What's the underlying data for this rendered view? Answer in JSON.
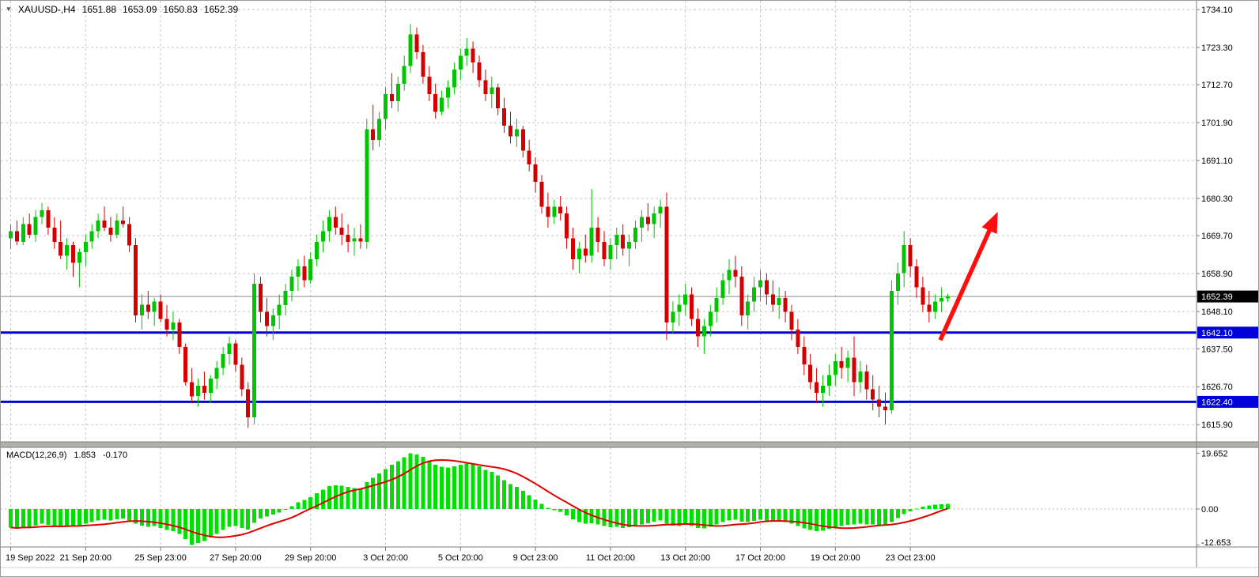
{
  "window": {
    "symbol_label": "XAUUSD-,H4",
    "open": "1651.88",
    "high": "1653.09",
    "low": "1650.83",
    "close": "1652.39"
  },
  "macd_panel": {
    "name": "MACD(12,26,9)",
    "main_value": "1.853",
    "signal_value": "-0.170"
  },
  "colors": {
    "bull": "#00C400",
    "bear": "#D40000",
    "macd_hist": "#00E000",
    "macd_signal": "#E00000",
    "level_line": "#0000D8",
    "grid": "#C8C8C8",
    "arrow": "#FF0E0E",
    "axis_text": "#000000",
    "badge_current_bg": "#000000",
    "badge_text": "#FFFFFF"
  },
  "price_axis": {
    "tick_labels": [
      "1734.10",
      "1723.30",
      "1712.70",
      "1701.90",
      "1691.10",
      "1680.30",
      "1669.70",
      "1658.90",
      "1648.10",
      "1637.50",
      "1626.70",
      "1615.90"
    ]
  },
  "macd_axis": {
    "tick_labels": [
      "19.652",
      "0.00",
      "-12.653"
    ],
    "tick_values": [
      19.652,
      0,
      -12.653
    ]
  },
  "time_axis": {
    "ticks": [
      {
        "label": "19 Sep 2022",
        "bar": 0
      },
      {
        "label": "21 Sep 20:00",
        "bar": 12
      },
      {
        "label": "25 Sep 23:00",
        "bar": 24
      },
      {
        "label": "27 Sep 20:00",
        "bar": 36
      },
      {
        "label": "29 Sep 20:00",
        "bar": 48
      },
      {
        "label": "3 Oct 20:00",
        "bar": 60
      },
      {
        "label": "5 Oct 20:00",
        "bar": 72
      },
      {
        "label": "9 Oct 23:00",
        "bar": 84
      },
      {
        "label": "11 Oct 20:00",
        "bar": 96
      },
      {
        "label": "13 Oct 20:00",
        "bar": 108
      },
      {
        "label": "17 Oct 20:00",
        "bar": 120
      },
      {
        "label": "19 Oct 20:00",
        "bar": 132
      },
      {
        "label": "23 Oct 23:00",
        "bar": 144
      }
    ]
  },
  "levels": [
    {
      "price": 1642.1,
      "label": "1642.10"
    },
    {
      "price": 1622.4,
      "label": "1622.40"
    }
  ],
  "current_price": {
    "value": 1652.39,
    "label": "1652.39"
  },
  "chart_data": {
    "type": "candlestick",
    "title": "XAUUSD-,H4",
    "symbol": "XAUUSD",
    "timeframe": "H4",
    "y_axis": {
      "range": [
        1611.0,
        1736.6
      ],
      "tick_values": [
        1734.1,
        1723.3,
        1712.7,
        1701.9,
        1691.1,
        1680.3,
        1669.7,
        1658.9,
        1648.1,
        1637.5,
        1626.7,
        1615.9
      ]
    },
    "x_axis": {
      "tick_bars": [
        0,
        12,
        24,
        36,
        48,
        60,
        72,
        84,
        96,
        108,
        120,
        132,
        144
      ],
      "tick_labels": [
        "19 Sep 2022",
        "21 Sep 20:00",
        "25 Sep 23:00",
        "27 Sep 20:00",
        "29 Sep 20:00",
        "3 Oct 20:00",
        "5 Oct 20:00",
        "9 Oct 23:00",
        "11 Oct 20:00",
        "13 Oct 20:00",
        "17 Oct 20:00",
        "19 Oct 20:00",
        "23 Oct 23:00"
      ]
    },
    "support_lines": [
      1642.1,
      1622.4
    ],
    "last_price": 1652.39,
    "arrow_annotation": {
      "from_bar": 148.8,
      "from_price": 1640.0,
      "to_bar": 158,
      "to_price": 1676.5
    },
    "candles_ohlc": [
      [
        1669,
        1673,
        1666,
        1671
      ],
      [
        1671,
        1674,
        1667,
        1668
      ],
      [
        1668,
        1675,
        1667,
        1673
      ],
      [
        1673,
        1676,
        1669,
        1670
      ],
      [
        1670,
        1677,
        1668,
        1675
      ],
      [
        1675,
        1679,
        1673,
        1677
      ],
      [
        1677,
        1678,
        1670,
        1672
      ],
      [
        1672,
        1675,
        1666,
        1668
      ],
      [
        1668,
        1674,
        1663,
        1664
      ],
      [
        1664,
        1669,
        1660,
        1667
      ],
      [
        1667,
        1668,
        1658,
        1662
      ],
      [
        1662,
        1666,
        1655,
        1665
      ],
      [
        1665,
        1670,
        1661,
        1668
      ],
      [
        1668,
        1673,
        1666,
        1671
      ],
      [
        1671,
        1676,
        1669,
        1674
      ],
      [
        1674,
        1678,
        1671,
        1672
      ],
      [
        1672,
        1675,
        1668,
        1670
      ],
      [
        1670,
        1676,
        1669,
        1674
      ],
      [
        1674,
        1678,
        1672,
        1673
      ],
      [
        1673,
        1675,
        1665,
        1667
      ],
      [
        1667,
        1669,
        1645,
        1647
      ],
      [
        1647,
        1653,
        1643,
        1650
      ],
      [
        1650,
        1654,
        1646,
        1648
      ],
      [
        1648,
        1652,
        1644,
        1651
      ],
      [
        1651,
        1653,
        1645,
        1646
      ],
      [
        1646,
        1650,
        1641,
        1643
      ],
      [
        1643,
        1648,
        1640,
        1645
      ],
      [
        1645,
        1646,
        1636,
        1638
      ],
      [
        1638,
        1639,
        1627,
        1628
      ],
      [
        1628,
        1632,
        1622,
        1624
      ],
      [
        1624,
        1629,
        1621,
        1627
      ],
      [
        1627,
        1631,
        1623,
        1625
      ],
      [
        1625,
        1630,
        1622,
        1629
      ],
      [
        1629,
        1634,
        1626,
        1632
      ],
      [
        1632,
        1638,
        1630,
        1636
      ],
      [
        1636,
        1641,
        1633,
        1639
      ],
      [
        1639,
        1640,
        1631,
        1633
      ],
      [
        1633,
        1635,
        1624,
        1626
      ],
      [
        1626,
        1628,
        1615,
        1618
      ],
      [
        1618,
        1659,
        1616,
        1656
      ],
      [
        1656,
        1658,
        1645,
        1648
      ],
      [
        1648,
        1652,
        1641,
        1644
      ],
      [
        1644,
        1649,
        1640,
        1647
      ],
      [
        1647,
        1653,
        1643,
        1650
      ],
      [
        1650,
        1656,
        1647,
        1654
      ],
      [
        1654,
        1660,
        1651,
        1658
      ],
      [
        1658,
        1663,
        1654,
        1661
      ],
      [
        1661,
        1664,
        1655,
        1657
      ],
      [
        1657,
        1665,
        1656,
        1663
      ],
      [
        1663,
        1670,
        1661,
        1668
      ],
      [
        1668,
        1674,
        1665,
        1671
      ],
      [
        1671,
        1677,
        1668,
        1675
      ],
      [
        1675,
        1678,
        1670,
        1672
      ],
      [
        1672,
        1676,
        1667,
        1670
      ],
      [
        1670,
        1673,
        1665,
        1668
      ],
      [
        1668,
        1672,
        1664,
        1669
      ],
      [
        1669,
        1673,
        1666,
        1668
      ],
      [
        1668,
        1703,
        1666,
        1700
      ],
      [
        1700,
        1707,
        1694,
        1697
      ],
      [
        1697,
        1705,
        1695,
        1703
      ],
      [
        1703,
        1712,
        1700,
        1710
      ],
      [
        1710,
        1716,
        1706,
        1708
      ],
      [
        1708,
        1715,
        1705,
        1713
      ],
      [
        1713,
        1721,
        1711,
        1718
      ],
      [
        1718,
        1730,
        1716,
        1727
      ],
      [
        1727,
        1729,
        1720,
        1722
      ],
      [
        1722,
        1724,
        1713,
        1715
      ],
      [
        1715,
        1718,
        1708,
        1710
      ],
      [
        1710,
        1713,
        1703,
        1705
      ],
      [
        1705,
        1711,
        1704,
        1709
      ],
      [
        1709,
        1714,
        1706,
        1712
      ],
      [
        1712,
        1719,
        1710,
        1717
      ],
      [
        1717,
        1723,
        1714,
        1721
      ],
      [
        1721,
        1726,
        1718,
        1723
      ],
      [
        1723,
        1725,
        1716,
        1719
      ],
      [
        1719,
        1721,
        1712,
        1714
      ],
      [
        1714,
        1717,
        1708,
        1710
      ],
      [
        1710,
        1715,
        1706,
        1712
      ],
      [
        1712,
        1713,
        1704,
        1706
      ],
      [
        1706,
        1709,
        1699,
        1701
      ],
      [
        1701,
        1705,
        1696,
        1698
      ],
      [
        1698,
        1703,
        1695,
        1700
      ],
      [
        1700,
        1701,
        1692,
        1694
      ],
      [
        1694,
        1697,
        1688,
        1690
      ],
      [
        1690,
        1692,
        1682,
        1685
      ],
      [
        1685,
        1687,
        1676,
        1678
      ],
      [
        1678,
        1682,
        1672,
        1675
      ],
      [
        1675,
        1680,
        1673,
        1678
      ],
      [
        1678,
        1681,
        1674,
        1676
      ],
      [
        1676,
        1678,
        1666,
        1669
      ],
      [
        1669,
        1672,
        1660,
        1663
      ],
      [
        1663,
        1668,
        1659,
        1666
      ],
      [
        1666,
        1670,
        1662,
        1664
      ],
      [
        1664,
        1683,
        1662,
        1672
      ],
      [
        1672,
        1675,
        1665,
        1668
      ],
      [
        1668,
        1671,
        1661,
        1663
      ],
      [
        1663,
        1669,
        1660,
        1667
      ],
      [
        1667,
        1672,
        1663,
        1670
      ],
      [
        1670,
        1673,
        1664,
        1666
      ],
      [
        1666,
        1670,
        1661,
        1668
      ],
      [
        1668,
        1674,
        1666,
        1672
      ],
      [
        1672,
        1677,
        1668,
        1675
      ],
      [
        1675,
        1679,
        1671,
        1673
      ],
      [
        1673,
        1678,
        1669,
        1676
      ],
      [
        1676,
        1680,
        1672,
        1678
      ],
      [
        1678,
        1682,
        1640,
        1645
      ],
      [
        1645,
        1651,
        1642,
        1648
      ],
      [
        1648,
        1653,
        1644,
        1650
      ],
      [
        1650,
        1656,
        1647,
        1653
      ],
      [
        1653,
        1655,
        1644,
        1646
      ],
      [
        1646,
        1649,
        1638,
        1641
      ],
      [
        1641,
        1646,
        1636,
        1644
      ],
      [
        1644,
        1650,
        1641,
        1648
      ],
      [
        1648,
        1655,
        1645,
        1652
      ],
      [
        1652,
        1659,
        1650,
        1657
      ],
      [
        1657,
        1663,
        1653,
        1660
      ],
      [
        1660,
        1664,
        1655,
        1658
      ],
      [
        1658,
        1661,
        1644,
        1647
      ],
      [
        1647,
        1653,
        1643,
        1651
      ],
      [
        1651,
        1658,
        1648,
        1655
      ],
      [
        1655,
        1660,
        1651,
        1657
      ],
      [
        1657,
        1659,
        1650,
        1653
      ],
      [
        1653,
        1657,
        1648,
        1650
      ],
      [
        1650,
        1655,
        1646,
        1652
      ],
      [
        1652,
        1654,
        1645,
        1648
      ],
      [
        1648,
        1650,
        1640,
        1643
      ],
      [
        1643,
        1646,
        1636,
        1638
      ],
      [
        1638,
        1641,
        1630,
        1633
      ],
      [
        1633,
        1636,
        1626,
        1628
      ],
      [
        1628,
        1632,
        1622,
        1625
      ],
      [
        1625,
        1630,
        1621,
        1627
      ],
      [
        1627,
        1633,
        1624,
        1630
      ],
      [
        1630,
        1636,
        1627,
        1634
      ],
      [
        1634,
        1638,
        1629,
        1632
      ],
      [
        1632,
        1637,
        1628,
        1635
      ],
      [
        1635,
        1641,
        1624,
        1628
      ],
      [
        1628,
        1634,
        1625,
        1631
      ],
      [
        1631,
        1633,
        1623,
        1626
      ],
      [
        1626,
        1630,
        1620,
        1623
      ],
      [
        1623,
        1627,
        1618,
        1621
      ],
      [
        1621,
        1625,
        1616,
        1620
      ],
      [
        1620,
        1657,
        1619,
        1654
      ],
      [
        1654,
        1662,
        1650,
        1659
      ],
      [
        1659,
        1671,
        1655,
        1667
      ],
      [
        1667,
        1669,
        1658,
        1661
      ],
      [
        1661,
        1663,
        1652,
        1655
      ],
      [
        1655,
        1658,
        1648,
        1650
      ],
      [
        1650,
        1654,
        1645,
        1648
      ],
      [
        1648,
        1653,
        1646,
        1651
      ],
      [
        1651,
        1655,
        1648,
        1652
      ],
      [
        1651.88,
        1653.09,
        1650.83,
        1652.39
      ]
    ],
    "indicator": {
      "name": "MACD",
      "params": [
        12,
        26,
        9
      ],
      "style": "histogram+signal",
      "signal_method": "SMA9 of main",
      "last_main": 1.853,
      "last_signal": -0.17,
      "y_range": [
        -13.33,
        21.67
      ],
      "main": [
        -6.5,
        -6.8,
        -6.2,
        -6.5,
        -5.8,
        -5.2,
        -5.5,
        -6.0,
        -6.4,
        -5.9,
        -6.3,
        -5.8,
        -5.2,
        -4.6,
        -4.0,
        -3.8,
        -4.0,
        -3.6,
        -3.4,
        -4.0,
        -5.2,
        -5.8,
        -6.2,
        -6.0,
        -6.6,
        -7.4,
        -7.8,
        -8.8,
        -10.5,
        -12.653,
        -12.0,
        -11.2,
        -10.0,
        -8.8,
        -7.4,
        -6.2,
        -6.0,
        -6.6,
        -7.2,
        -4.8,
        -3.4,
        -2.6,
        -2.0,
        -1.2,
        -0.2,
        1.0,
        2.4,
        3.2,
        4.2,
        5.6,
        6.8,
        8.0,
        8.4,
        8.2,
        7.8,
        7.4,
        7.2,
        9.5,
        11.0,
        12.5,
        14.0,
        15.5,
        16.8,
        18.2,
        19.652,
        19.2,
        18.4,
        17.0,
        15.6,
        14.8,
        14.6,
        15.0,
        15.6,
        16.0,
        15.8,
        15.0,
        13.8,
        13.0,
        11.8,
        10.2,
        8.8,
        7.8,
        6.4,
        4.8,
        3.4,
        1.8,
        0.4,
        -0.4,
        -1.0,
        -2.2,
        -3.6,
        -4.6,
        -5.2,
        -5.0,
        -5.4,
        -6.0,
        -6.4,
        -6.2,
        -6.6,
        -6.4,
        -6.0,
        -5.4,
        -5.0,
        -4.4,
        -4.0,
        -5.2,
        -5.8,
        -6.0,
        -5.6,
        -6.0,
        -6.6,
        -6.8,
        -6.2,
        -5.4,
        -4.6,
        -4.0,
        -3.8,
        -4.4,
        -4.6,
        -4.2,
        -3.8,
        -4.0,
        -4.4,
        -4.2,
        -4.6,
        -5.2,
        -6.0,
        -6.8,
        -7.4,
        -7.8,
        -7.6,
        -7.0,
        -6.4,
        -6.0,
        -5.6,
        -5.4,
        -5.2,
        -5.4,
        -5.4,
        -5.6,
        -5.8,
        -4.6,
        -3.2,
        -1.8,
        -0.8,
        0.2,
        0.8,
        1.2,
        1.5,
        1.7,
        1.853
      ]
    }
  }
}
